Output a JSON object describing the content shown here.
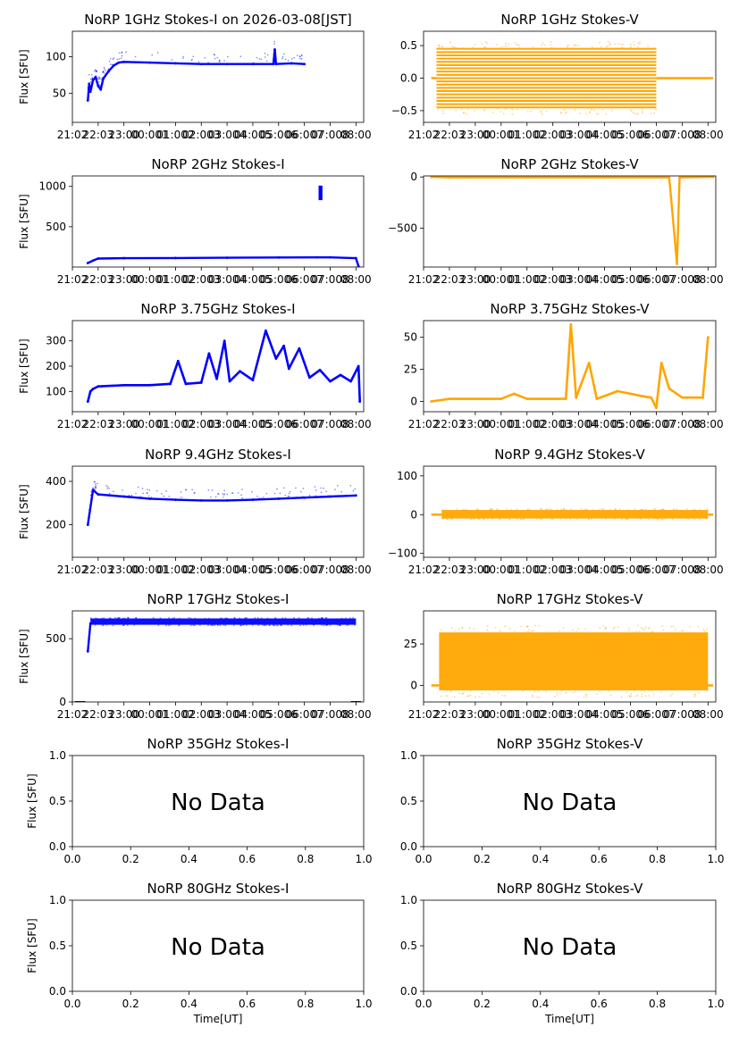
{
  "colors": {
    "stokes_i": "#0000ff",
    "stokes_v": "#ffa500"
  },
  "shared": {
    "time_ticks": [
      "21:00",
      "22:00",
      "23:00",
      "00:00",
      "01:00",
      "02:00",
      "03:00",
      "04:00",
      "05:00",
      "06:00",
      "07:00",
      "08:00"
    ],
    "time_ticks_rendered": [
      "21:02",
      "22:03",
      "23:00",
      "00:001",
      "01:002",
      "02:003",
      "03:004",
      "04:005",
      "05:006",
      "06:007",
      "07:008",
      "08:00"
    ],
    "ylabel": "Flux [SFU]",
    "xlabel": "Time[UT]",
    "no_data_text": "No Data",
    "empty_ticks": [
      "0.0",
      "0.2",
      "0.4",
      "0.6",
      "0.8",
      "1.0"
    ],
    "empty_yticks": [
      "0.0",
      "0.5",
      "1.0"
    ]
  },
  "chart_data": [
    {
      "id": "1i",
      "type": "scatter",
      "title": "NoRP 1GHz Stokes-I on 2026-03-08[JST]",
      "has_data": true,
      "color": "stokes_i",
      "x_range_hours": [
        21.0,
        32.3
      ],
      "ylim": [
        10,
        135
      ],
      "yticks": [
        50,
        100
      ],
      "yticklabels": [
        "50",
        "100"
      ],
      "points": [
        [
          21.6,
          40
        ],
        [
          21.65,
          63
        ],
        [
          21.7,
          52
        ],
        [
          21.8,
          68
        ],
        [
          21.9,
          72
        ],
        [
          22.0,
          60
        ],
        [
          22.1,
          55
        ],
        [
          22.2,
          70
        ],
        [
          22.4,
          80
        ],
        [
          22.6,
          88
        ],
        [
          22.8,
          92
        ],
        [
          23.0,
          93
        ],
        [
          24.0,
          92
        ],
        [
          25.0,
          91
        ],
        [
          26.0,
          90
        ],
        [
          27.0,
          90
        ],
        [
          28.0,
          90
        ],
        [
          28.8,
          90
        ],
        [
          28.85,
          110
        ],
        [
          28.9,
          90
        ],
        [
          29.5,
          91
        ],
        [
          30.0,
          90
        ]
      ]
    },
    {
      "id": "1v",
      "type": "scatter",
      "title": "NoRP 1GHz Stokes-V",
      "has_data": true,
      "color": "stokes_v",
      "x_range_hours": [
        21.0,
        32.3
      ],
      "ylim": [
        -0.68,
        0.72
      ],
      "yticks": [
        -0.5,
        0.0,
        0.5
      ],
      "yticklabels": [
        "−0.5",
        "0.0",
        "0.5"
      ],
      "bands": [
        [
          21.5,
          30.0,
          -0.45,
          0.45
        ]
      ],
      "flat": [
        [
          21.3,
          21.5,
          0.0
        ],
        [
          30.0,
          32.2,
          0.0
        ]
      ]
    },
    {
      "id": "2i",
      "type": "scatter",
      "title": "NoRP 2GHz Stokes-I",
      "has_data": true,
      "color": "stokes_i",
      "x_range_hours": [
        21.0,
        32.3
      ],
      "ylim": [
        0,
        1130
      ],
      "yticks": [
        500,
        1000
      ],
      "yticklabels": [
        "500",
        "1000"
      ],
      "points": [
        [
          21.6,
          50
        ],
        [
          21.8,
          80
        ],
        [
          22.0,
          105
        ],
        [
          23.0,
          110
        ],
        [
          25.0,
          112
        ],
        [
          27.0,
          115
        ],
        [
          29.0,
          118
        ],
        [
          30.5,
          120
        ],
        [
          31.0,
          120
        ],
        [
          32.0,
          110
        ],
        [
          32.1,
          10
        ]
      ],
      "spikes": [
        [
          30.55,
          30.7,
          830,
          1010
        ]
      ]
    },
    {
      "id": "2v",
      "type": "scatter",
      "title": "NoRP 2GHz Stokes-V",
      "has_data": true,
      "color": "stokes_v",
      "x_range_hours": [
        21.0,
        32.3
      ],
      "ylim": [
        -880,
        10
      ],
      "yticks": [
        -500,
        0
      ],
      "yticklabels": [
        "−500",
        "0"
      ],
      "points": [
        [
          21.3,
          0
        ],
        [
          22.0,
          -5
        ],
        [
          25.0,
          -5
        ],
        [
          28.0,
          -5
        ],
        [
          30.5,
          -5
        ],
        [
          30.75,
          -700
        ],
        [
          30.8,
          -850
        ],
        [
          30.9,
          -5
        ],
        [
          32.2,
          0
        ]
      ]
    },
    {
      "id": "375i",
      "type": "line",
      "title": "NoRP 3.75GHz Stokes-I",
      "has_data": true,
      "color": "stokes_i",
      "x_range_hours": [
        21.0,
        32.3
      ],
      "ylim": [
        20,
        380
      ],
      "yticks": [
        100,
        200,
        300
      ],
      "yticklabels": [
        "100",
        "200",
        "300"
      ],
      "points": [
        [
          21.6,
          60
        ],
        [
          21.7,
          100
        ],
        [
          21.8,
          110
        ],
        [
          22.0,
          120
        ],
        [
          23.0,
          125
        ],
        [
          24.0,
          125
        ],
        [
          24.8,
          130
        ],
        [
          25.1,
          220
        ],
        [
          25.4,
          130
        ],
        [
          26.0,
          135
        ],
        [
          26.3,
          250
        ],
        [
          26.6,
          150
        ],
        [
          26.9,
          300
        ],
        [
          27.1,
          140
        ],
        [
          27.5,
          180
        ],
        [
          28.0,
          145
        ],
        [
          28.5,
          340
        ],
        [
          28.9,
          230
        ],
        [
          29.2,
          280
        ],
        [
          29.4,
          190
        ],
        [
          29.8,
          270
        ],
        [
          30.2,
          155
        ],
        [
          30.6,
          185
        ],
        [
          31.0,
          140
        ],
        [
          31.4,
          165
        ],
        [
          31.8,
          140
        ],
        [
          32.1,
          200
        ],
        [
          32.15,
          60
        ]
      ]
    },
    {
      "id": "375v",
      "type": "line",
      "title": "NoRP 3.75GHz Stokes-V",
      "has_data": true,
      "color": "stokes_v",
      "x_range_hours": [
        21.0,
        32.3
      ],
      "ylim": [
        -8,
        63
      ],
      "yticks": [
        0,
        25,
        50
      ],
      "yticklabels": [
        "0",
        "25",
        "50"
      ],
      "points": [
        [
          21.3,
          0
        ],
        [
          22.0,
          2
        ],
        [
          24.0,
          2
        ],
        [
          24.5,
          6
        ],
        [
          25.0,
          2
        ],
        [
          26.5,
          2
        ],
        [
          26.7,
          60
        ],
        [
          26.9,
          3
        ],
        [
          27.4,
          30
        ],
        [
          27.7,
          2
        ],
        [
          28.5,
          8
        ],
        [
          29.0,
          6
        ],
        [
          29.5,
          4
        ],
        [
          29.8,
          3
        ],
        [
          30.0,
          -5
        ],
        [
          30.2,
          30
        ],
        [
          30.5,
          10
        ],
        [
          31.0,
          3
        ],
        [
          31.8,
          3
        ],
        [
          32.0,
          50
        ]
      ]
    },
    {
      "id": "94i",
      "type": "scatter",
      "title": "NoRP 9.4GHz Stokes-I",
      "has_data": true,
      "color": "stokes_i",
      "x_range_hours": [
        21.0,
        32.3
      ],
      "ylim": [
        50,
        470
      ],
      "yticks": [
        200,
        400
      ],
      "yticklabels": [
        "200",
        "400"
      ],
      "points": [
        [
          21.6,
          200
        ],
        [
          21.8,
          360
        ],
        [
          22.0,
          340
        ],
        [
          23.0,
          330
        ],
        [
          24.0,
          320
        ],
        [
          25.0,
          315
        ],
        [
          26.0,
          312
        ],
        [
          27.0,
          312
        ],
        [
          28.0,
          315
        ],
        [
          29.0,
          320
        ],
        [
          30.0,
          325
        ],
        [
          31.0,
          330
        ],
        [
          32.0,
          335
        ]
      ]
    },
    {
      "id": "94v",
      "type": "scatter",
      "title": "NoRP 9.4GHz Stokes-V",
      "has_data": true,
      "color": "stokes_v",
      "x_range_hours": [
        21.0,
        32.3
      ],
      "ylim": [
        -110,
        125
      ],
      "yticks": [
        -100,
        0,
        100
      ],
      "yticklabels": [
        "−100",
        "0",
        "100"
      ],
      "bands": [
        [
          21.7,
          32.0,
          -10,
          12
        ]
      ],
      "flat": [
        [
          21.3,
          21.7,
          0
        ],
        [
          32.0,
          32.2,
          0
        ]
      ]
    },
    {
      "id": "17i",
      "type": "scatter",
      "title": "NoRP 17GHz Stokes-I",
      "has_data": true,
      "color": "stokes_i",
      "x_range_hours": [
        21.0,
        32.3
      ],
      "ylim": [
        0,
        720
      ],
      "yticks": [
        0,
        500
      ],
      "yticklabels": [
        "0",
        "500"
      ],
      "bands": [
        [
          21.7,
          32.0,
          610,
          660
        ]
      ],
      "points": [
        [
          21.6,
          400
        ],
        [
          21.7,
          620
        ]
      ]
    },
    {
      "id": "17v",
      "type": "scatter",
      "title": "NoRP 17GHz Stokes-V",
      "has_data": true,
      "color": "stokes_v",
      "x_range_hours": [
        21.0,
        32.3
      ],
      "ylim": [
        -10,
        45
      ],
      "yticks": [
        0,
        25
      ],
      "yticklabels": [
        "0",
        "25"
      ],
      "bands": [
        [
          21.6,
          32.0,
          -3,
          32
        ]
      ],
      "flat": [
        [
          21.3,
          21.6,
          0
        ],
        [
          32.0,
          32.2,
          0
        ]
      ]
    },
    {
      "id": "35i",
      "type": "scatter",
      "title": "NoRP 35GHz Stokes-I",
      "has_data": false
    },
    {
      "id": "35v",
      "type": "scatter",
      "title": "NoRP 35GHz Stokes-V",
      "has_data": false
    },
    {
      "id": "80i",
      "type": "scatter",
      "title": "NoRP 80GHz Stokes-I",
      "has_data": false
    },
    {
      "id": "80v",
      "type": "scatter",
      "title": "NoRP 80GHz Stokes-V",
      "has_data": false
    }
  ]
}
